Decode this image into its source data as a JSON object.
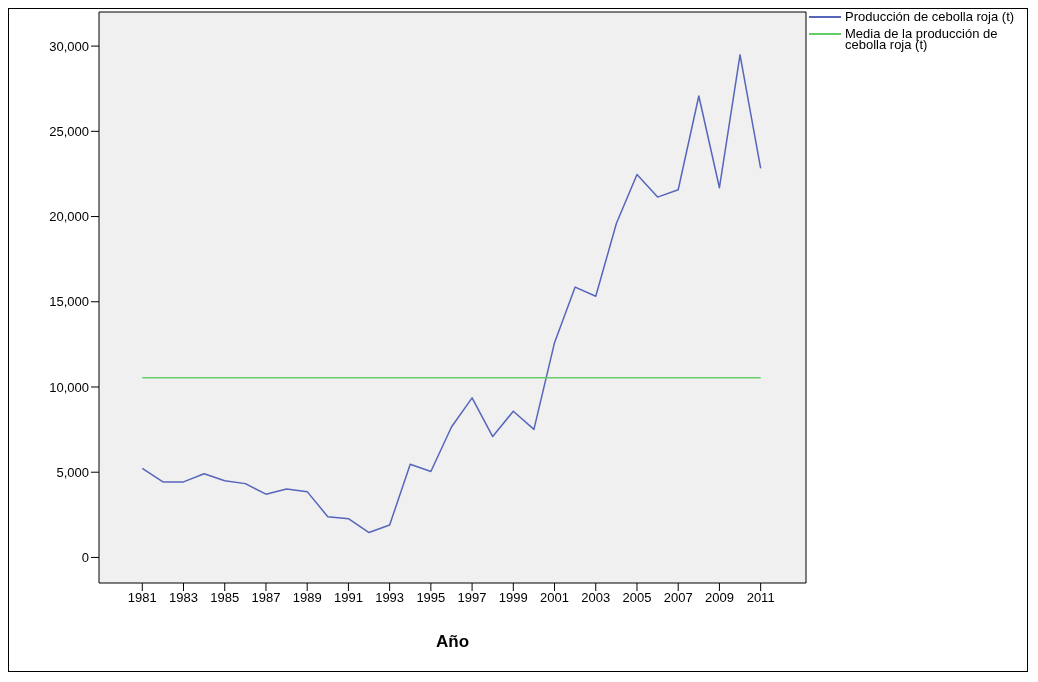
{
  "chart_data": {
    "type": "line",
    "xlabel": "Año",
    "x": [
      1981,
      1982,
      1983,
      1984,
      1985,
      1986,
      1987,
      1988,
      1989,
      1990,
      1991,
      1992,
      1993,
      1994,
      1995,
      1996,
      1997,
      1998,
      1999,
      2000,
      2001,
      2002,
      2003,
      2004,
      2005,
      2006,
      2007,
      2008,
      2009,
      2010,
      2011
    ],
    "series": [
      {
        "name": "Producción de cebolla roja (t)",
        "color": "#5566bb",
        "values": [
          5230,
          4430,
          4430,
          4910,
          4500,
          4330,
          3710,
          4020,
          3860,
          2390,
          2270,
          1460,
          1900,
          5470,
          5040,
          7650,
          9360,
          7090,
          8580,
          7510,
          12600,
          15860,
          15320,
          19590,
          22470,
          21140,
          21570,
          27070,
          21690,
          29490,
          22830
        ]
      },
      {
        "name": "Media de la producción de cebolla roja (t)",
        "color": "#66cc66",
        "values": [
          10540,
          10540,
          10540,
          10540,
          10540,
          10540,
          10540,
          10540,
          10540,
          10540,
          10540,
          10540,
          10540,
          10540,
          10540,
          10540,
          10540,
          10540,
          10540,
          10540,
          10540,
          10540,
          10540,
          10540,
          10540,
          10540,
          10540,
          10540,
          10540,
          10540,
          10540
        ]
      }
    ],
    "xlim": [
      1978.9,
      2013.2
    ],
    "xticks": [
      1981,
      1983,
      1985,
      1987,
      1989,
      1991,
      1993,
      1995,
      1997,
      1999,
      2001,
      2003,
      2005,
      2007,
      2009,
      2011
    ],
    "ylim": [
      -1500,
      32000
    ],
    "yticks": [
      {
        "value": 0,
        "label": "0"
      },
      {
        "value": 5000,
        "label": "5,000"
      },
      {
        "value": 10000,
        "label": "10,000"
      },
      {
        "value": 15000,
        "label": "15,000"
      },
      {
        "value": 20000,
        "label": "20,000"
      },
      {
        "value": 25000,
        "label": "25,000"
      },
      {
        "value": 30000,
        "label": "30,000"
      }
    ],
    "grid": false,
    "legend": "top right",
    "marker": "none",
    "line_style": "solid"
  }
}
